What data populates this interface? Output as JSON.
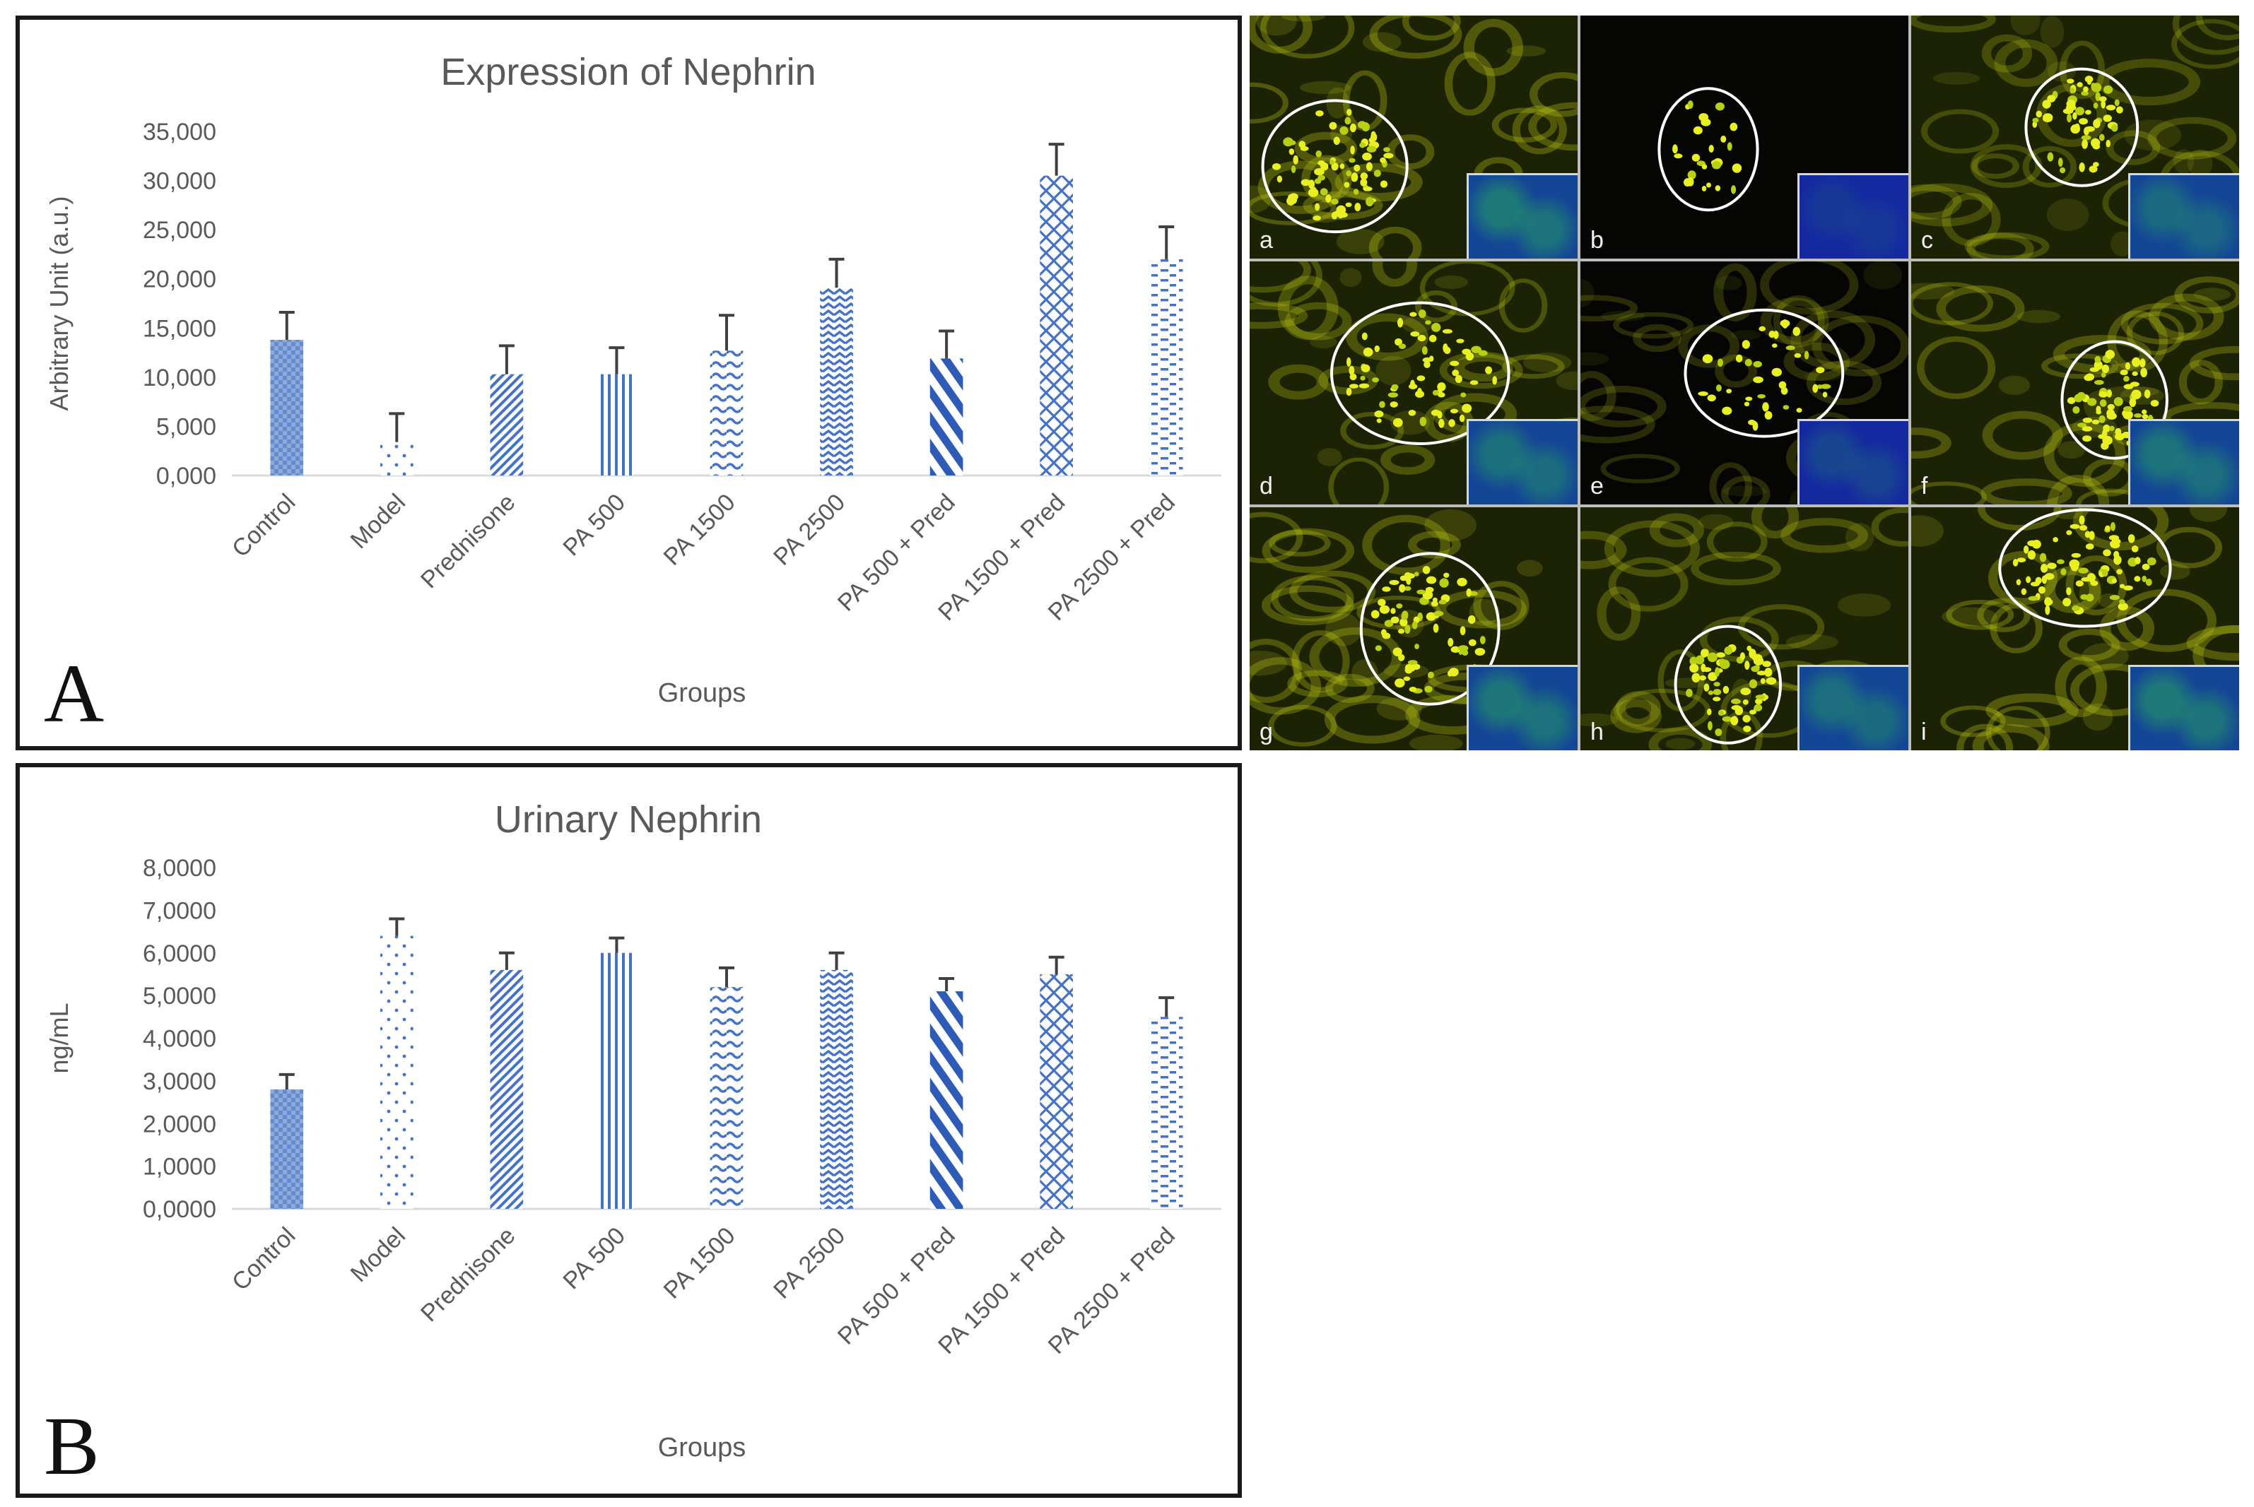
{
  "chart_data": [
    {
      "type": "bar",
      "panel_label": "A",
      "title": "Expression of Nephrin",
      "xlabel": "Groups",
      "ylabel": "Arbitrary Unit (a.u.)",
      "ylim": [
        0,
        35000
      ],
      "yticks": [
        0,
        5000,
        10000,
        15000,
        20000,
        25000,
        30000,
        35000
      ],
      "ytick_labels": [
        "0,000",
        "5,000",
        "10,000",
        "15,000",
        "20,000",
        "25,000",
        "30,000",
        "35,000"
      ],
      "categories": [
        "Control",
        "Model",
        "Prednisone",
        "PA 500",
        "PA 1500",
        "PA 2500",
        "PA 500 + Pred",
        "PA 1500 + Pred",
        "PA 2500 + Pred"
      ],
      "values": [
        13800,
        3400,
        10300,
        10300,
        12700,
        19100,
        11900,
        30500,
        22000
      ],
      "errors": [
        2800,
        2900,
        2900,
        2700,
        3600,
        2900,
        2800,
        3200,
        3300
      ],
      "grid": false,
      "legend": "none"
    },
    {
      "type": "bar",
      "panel_label": "B",
      "title": "Urinary Nephrin",
      "xlabel": "Groups",
      "ylabel": "ng/mL",
      "ylim": [
        0,
        8
      ],
      "yticks": [
        0,
        1,
        2,
        3,
        4,
        5,
        6,
        7,
        8
      ],
      "ytick_labels": [
        "0,0000",
        "1,0000",
        "2,0000",
        "3,0000",
        "4,0000",
        "5,0000",
        "6,0000",
        "7,0000",
        "8,0000"
      ],
      "categories": [
        "Control",
        "Model",
        "Prednisone",
        "PA 500",
        "PA 1500",
        "PA 2500",
        "PA 500 + Pred",
        "PA 1500 + Pred",
        "PA 2500 + Pred"
      ],
      "values": [
        2.8,
        6.4,
        5.6,
        6.0,
        5.2,
        5.6,
        5.1,
        5.5,
        4.5
      ],
      "errors": [
        0.35,
        0.4,
        0.4,
        0.35,
        0.45,
        0.4,
        0.3,
        0.4,
        0.45
      ],
      "grid": false,
      "legend": "none"
    }
  ],
  "micrographs": {
    "labels": [
      "a",
      "b",
      "c",
      "d",
      "e",
      "f",
      "g",
      "h",
      "i"
    ]
  },
  "colors": {
    "bar": "#4472c4",
    "bar_light": "#8eaadb",
    "text": "#595959",
    "axis": "#d9d9d9",
    "errorbar": "#404040"
  }
}
